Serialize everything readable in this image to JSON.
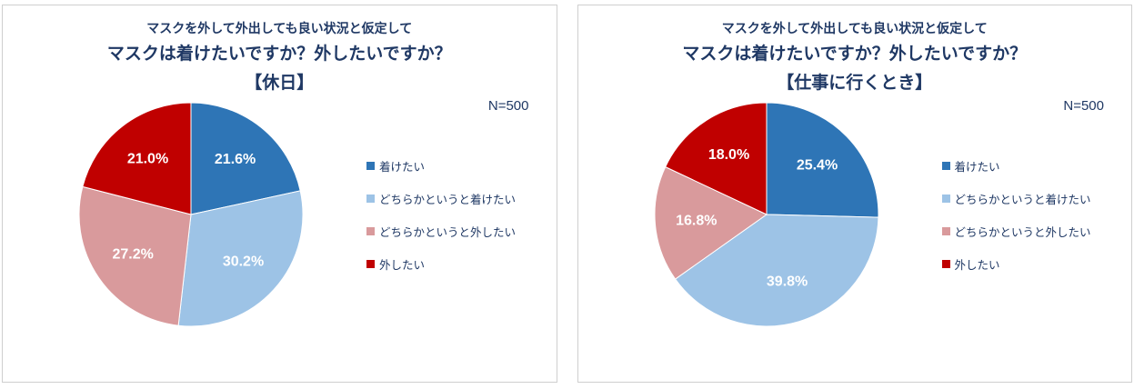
{
  "chart_data": [
    {
      "type": "pie",
      "title_line1": "マスクを外して外出しても良い状況と仮定して",
      "title_line2": "マスクは着けたいですか？外したいですか？",
      "title_line3": "【休日】",
      "n_label": "N=500",
      "categories": [
        "着けたい",
        "どちらかというと着けたい",
        "どちらかというと外したい",
        "外したい"
      ],
      "values": [
        21.6,
        30.2,
        27.2,
        21.0
      ],
      "data_labels": [
        "21.6%",
        "30.2%",
        "27.2%",
        "21.0%"
      ],
      "colors": [
        "#2e75b6",
        "#9dc3e6",
        "#d99a9c",
        "#c00000"
      ],
      "start_angle_deg": 0,
      "direction": "clockwise",
      "legend_position": "right",
      "data_label_color": "#ffffff"
    },
    {
      "type": "pie",
      "title_line1": "マスクを外して外出しても良い状況と仮定して",
      "title_line2": "マスクは着けたいですか？外したいですか？",
      "title_line3": "【仕事に行くとき】",
      "n_label": "N=500",
      "categories": [
        "着けたい",
        "どちらかというと着けたい",
        "どちらかというと外したい",
        "外したい"
      ],
      "values": [
        25.4,
        39.8,
        16.8,
        18.0
      ],
      "data_labels": [
        "25.4%",
        "39.8%",
        "16.8%",
        "18.0%"
      ],
      "colors": [
        "#2e75b6",
        "#9dc3e6",
        "#d99a9c",
        "#c00000"
      ],
      "start_angle_deg": 0,
      "direction": "clockwise",
      "legend_position": "right",
      "data_label_color": "#ffffff"
    }
  ],
  "styles": {
    "title_color": "#1f3864",
    "panel_border_color": "#cfcfcf"
  }
}
